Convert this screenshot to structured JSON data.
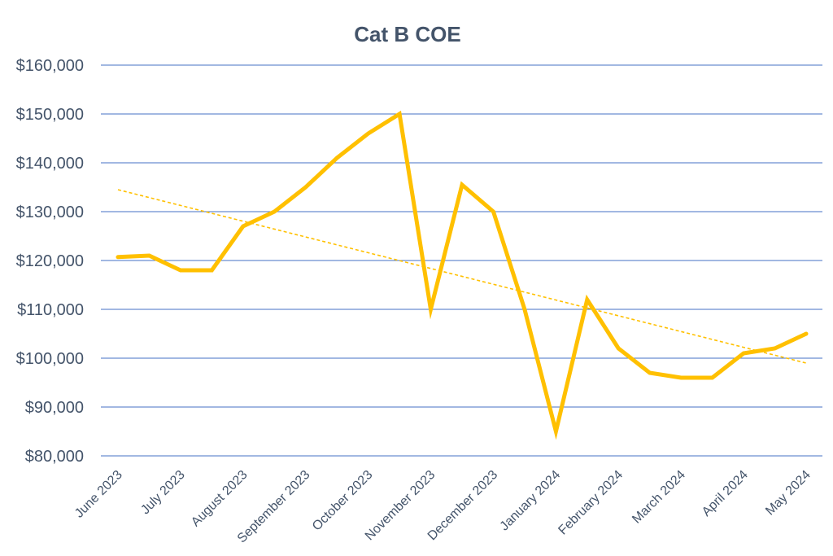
{
  "chart_data": {
    "type": "line",
    "title": "Cat B COE",
    "xlabel": "",
    "ylabel": "",
    "ylim": [
      80000,
      160000
    ],
    "yticks": [
      80000,
      90000,
      100000,
      110000,
      120000,
      130000,
      140000,
      150000,
      160000
    ],
    "ytick_labels": [
      "$80,000",
      "$90,000",
      "$100,000",
      "$110,000",
      "$120,000",
      "$130,000",
      "$140,000",
      "$150,000",
      "$160,000"
    ],
    "x_labels": [
      "June 2023",
      "July 2023",
      "August 2023",
      "September 2023",
      "October 2023",
      "November 2023",
      "December 2023",
      "January 2024",
      "February 2024",
      "March 2024",
      "April 2024",
      "May 2024"
    ],
    "grid": true,
    "series": [
      {
        "name": "Cat B COE",
        "color": "#FFC000",
        "x": [
          0,
          0.5,
          1,
          1.5,
          2,
          2.5,
          3,
          3.5,
          4,
          4.5,
          5,
          5.5,
          6,
          6.5,
          7,
          7.5,
          8,
          8.5,
          9,
          9.5,
          10,
          10.5,
          11
        ],
        "values": [
          120700,
          121000,
          118000,
          118000,
          127000,
          130000,
          135000,
          141000,
          146000,
          150000,
          110000,
          135500,
          130000,
          110000,
          85000,
          112000,
          102000,
          97000,
          96000,
          96000,
          101000,
          102000,
          105000
        ]
      }
    ],
    "trendline": {
      "type": "linear",
      "color": "#FFC000",
      "style": "dashed",
      "start": {
        "x": 0,
        "y": 134500
      },
      "end": {
        "x": 11,
        "y": 99000
      }
    }
  }
}
